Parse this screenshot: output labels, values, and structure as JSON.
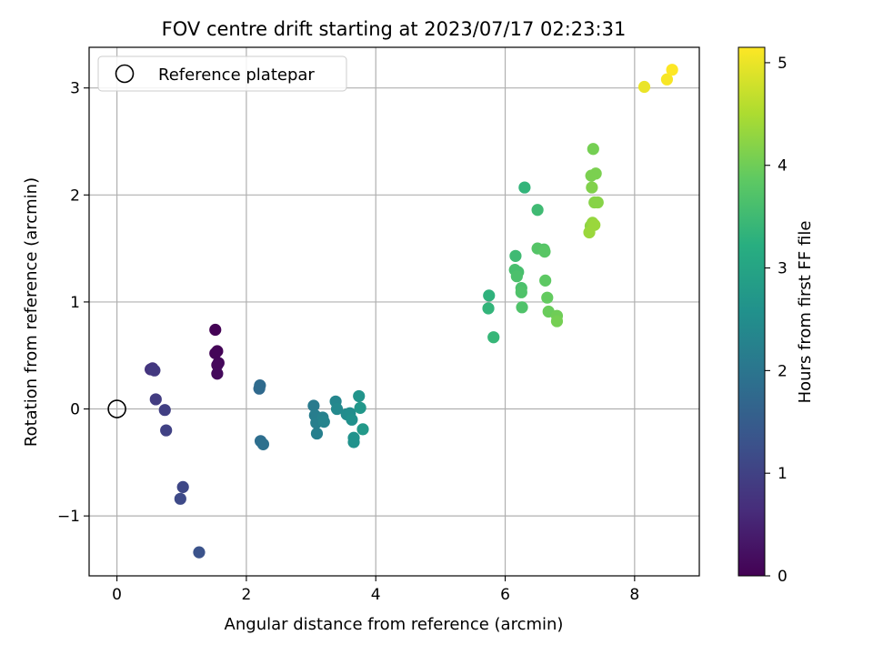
{
  "chart_data": {
    "type": "scatter",
    "title": "FOV centre drift starting at 2023/07/17 02:23:31",
    "xlabel": "Angular distance from reference (arcmin)",
    "ylabel": "Rotation from reference (arcmin)",
    "xlim": [
      -0.43,
      9.0
    ],
    "ylim": [
      -1.56,
      3.38
    ],
    "xticks": [
      0,
      2,
      4,
      6,
      8
    ],
    "yticks": [
      -1,
      0,
      1,
      2,
      3
    ],
    "xtick_labels": [
      "0",
      "2",
      "4",
      "6",
      "8"
    ],
    "ytick_labels": [
      "−1",
      "0",
      "1",
      "2",
      "3"
    ],
    "grid": true,
    "legend": {
      "position": "top-left",
      "entries": [
        "Reference platepar"
      ]
    },
    "reference_point": {
      "x": 0,
      "y": 0
    },
    "colorbar": {
      "label": "Hours from first FF file",
      "colormap": "viridis",
      "range": [
        0,
        5.15
      ],
      "ticks": [
        0,
        1,
        2,
        3,
        4,
        5
      ],
      "tick_labels": [
        "0",
        "1",
        "2",
        "3",
        "4",
        "5"
      ]
    },
    "points": [
      {
        "x": 1.52,
        "y": 0.74,
        "hours": 0.02
      },
      {
        "x": 1.55,
        "y": 0.54,
        "hours": 0.05
      },
      {
        "x": 1.52,
        "y": 0.52,
        "hours": 0.07
      },
      {
        "x": 1.57,
        "y": 0.43,
        "hours": 0.09
      },
      {
        "x": 1.55,
        "y": 0.41,
        "hours": 0.11
      },
      {
        "x": 1.55,
        "y": 0.33,
        "hours": 0.13
      },
      {
        "x": 0.52,
        "y": 0.37,
        "hours": 0.75
      },
      {
        "x": 0.55,
        "y": 0.38,
        "hours": 0.8
      },
      {
        "x": 0.58,
        "y": 0.36,
        "hours": 0.85
      },
      {
        "x": 0.6,
        "y": 0.09,
        "hours": 0.9
      },
      {
        "x": 0.74,
        "y": -0.01,
        "hours": 0.95
      },
      {
        "x": 0.76,
        "y": -0.2,
        "hours": 1.0
      },
      {
        "x": 1.02,
        "y": -0.73,
        "hours": 1.1
      },
      {
        "x": 0.98,
        "y": -0.84,
        "hours": 1.15
      },
      {
        "x": 1.27,
        "y": -1.34,
        "hours": 1.3
      },
      {
        "x": 2.2,
        "y": 0.19,
        "hours": 1.75
      },
      {
        "x": 2.21,
        "y": 0.22,
        "hours": 1.8
      },
      {
        "x": 2.22,
        "y": -0.3,
        "hours": 1.85
      },
      {
        "x": 2.26,
        "y": -0.33,
        "hours": 1.9
      },
      {
        "x": 3.04,
        "y": 0.03,
        "hours": 2.1
      },
      {
        "x": 3.06,
        "y": -0.06,
        "hours": 2.15
      },
      {
        "x": 3.1,
        "y": -0.1,
        "hours": 2.15
      },
      {
        "x": 3.08,
        "y": -0.13,
        "hours": 2.2
      },
      {
        "x": 3.09,
        "y": -0.23,
        "hours": 2.2
      },
      {
        "x": 3.18,
        "y": -0.08,
        "hours": 2.25
      },
      {
        "x": 3.2,
        "y": -0.12,
        "hours": 2.3
      },
      {
        "x": 3.38,
        "y": 0.07,
        "hours": 2.35
      },
      {
        "x": 3.4,
        "y": 0.0,
        "hours": 2.4
      },
      {
        "x": 3.55,
        "y": -0.05,
        "hours": 2.45
      },
      {
        "x": 3.6,
        "y": -0.04,
        "hours": 2.5
      },
      {
        "x": 3.63,
        "y": -0.1,
        "hours": 2.55
      },
      {
        "x": 3.66,
        "y": -0.27,
        "hours": 2.6
      },
      {
        "x": 3.66,
        "y": -0.31,
        "hours": 2.6
      },
      {
        "x": 3.74,
        "y": 0.12,
        "hours": 2.65
      },
      {
        "x": 3.76,
        "y": 0.01,
        "hours": 2.7
      },
      {
        "x": 3.8,
        "y": -0.19,
        "hours": 2.75
      },
      {
        "x": 5.75,
        "y": 1.06,
        "hours": 3.3
      },
      {
        "x": 5.74,
        "y": 0.94,
        "hours": 3.35
      },
      {
        "x": 5.82,
        "y": 0.67,
        "hours": 3.4
      },
      {
        "x": 6.3,
        "y": 2.07,
        "hours": 3.35
      },
      {
        "x": 6.16,
        "y": 1.43,
        "hours": 3.5
      },
      {
        "x": 6.15,
        "y": 1.3,
        "hours": 3.6
      },
      {
        "x": 6.2,
        "y": 1.28,
        "hours": 3.6
      },
      {
        "x": 6.18,
        "y": 1.24,
        "hours": 3.65
      },
      {
        "x": 6.25,
        "y": 1.13,
        "hours": 3.65
      },
      {
        "x": 6.25,
        "y": 1.09,
        "hours": 3.7
      },
      {
        "x": 6.26,
        "y": 0.95,
        "hours": 3.7
      },
      {
        "x": 6.5,
        "y": 1.86,
        "hours": 3.5
      },
      {
        "x": 6.5,
        "y": 1.5,
        "hours": 3.75
      },
      {
        "x": 6.6,
        "y": 1.49,
        "hours": 3.75
      },
      {
        "x": 6.61,
        "y": 1.47,
        "hours": 3.8
      },
      {
        "x": 6.62,
        "y": 1.2,
        "hours": 3.85
      },
      {
        "x": 6.65,
        "y": 1.04,
        "hours": 3.9
      },
      {
        "x": 6.67,
        "y": 0.91,
        "hours": 3.95
      },
      {
        "x": 6.8,
        "y": 0.87,
        "hours": 4.0
      },
      {
        "x": 6.8,
        "y": 0.82,
        "hours": 4.05
      },
      {
        "x": 7.36,
        "y": 2.43,
        "hours": 4.05
      },
      {
        "x": 7.33,
        "y": 2.18,
        "hours": 4.1
      },
      {
        "x": 7.4,
        "y": 2.2,
        "hours": 4.1
      },
      {
        "x": 7.34,
        "y": 2.07,
        "hours": 4.15
      },
      {
        "x": 7.38,
        "y": 1.93,
        "hours": 4.2
      },
      {
        "x": 7.43,
        "y": 1.93,
        "hours": 4.2
      },
      {
        "x": 7.32,
        "y": 1.71,
        "hours": 4.25
      },
      {
        "x": 7.35,
        "y": 1.74,
        "hours": 4.3
      },
      {
        "x": 7.38,
        "y": 1.72,
        "hours": 4.35
      },
      {
        "x": 7.3,
        "y": 1.65,
        "hours": 4.35
      },
      {
        "x": 8.15,
        "y": 3.01,
        "hours": 5.0
      },
      {
        "x": 8.5,
        "y": 3.08,
        "hours": 5.1
      },
      {
        "x": 8.58,
        "y": 3.17,
        "hours": 5.15
      }
    ]
  }
}
